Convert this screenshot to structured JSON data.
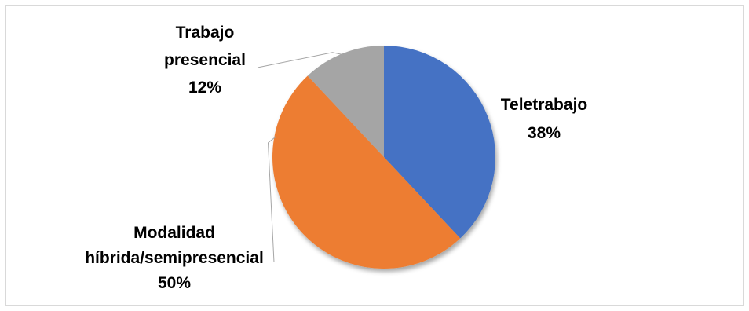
{
  "chart_data": {
    "type": "pie",
    "title": "",
    "categories": [
      "Teletrabajo",
      "Modalidad híbrida/semipresencial",
      "Trabajo presencial"
    ],
    "values": [
      38,
      50,
      12
    ],
    "units": "%",
    "labels": [
      {
        "lines": [
          "Teletrabajo",
          "38%"
        ]
      },
      {
        "lines": [
          "Modalidad",
          "híbrida/semipresencial",
          "50%"
        ]
      },
      {
        "lines": [
          "Trabajo",
          "presencial",
          "12%"
        ]
      }
    ],
    "colors": [
      "#4472c4",
      "#ed7d31",
      "#a5a5a5"
    ],
    "legend": "none"
  }
}
